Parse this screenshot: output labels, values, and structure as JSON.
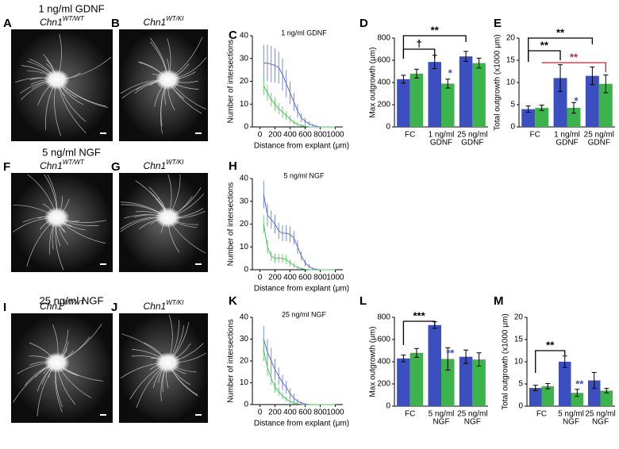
{
  "rows": [
    "1 ng/ml GDNF",
    "5 ng/ml NGF",
    "25 ng/ml NGF"
  ],
  "panels": [
    {
      "letter": "A",
      "genotype": "Chn1",
      "superscript": "WT/WT"
    },
    {
      "letter": "B",
      "genotype": "Chn1",
      "superscript": "WT/KI"
    },
    {
      "letter": "F",
      "genotype": "Chn1",
      "superscript": "WT/WT"
    },
    {
      "letter": "G",
      "genotype": "Chn1",
      "superscript": "WT/KI"
    },
    {
      "letter": "I",
      "genotype": "Chn1",
      "superscript": "WT/WT"
    },
    {
      "letter": "J",
      "genotype": "Chn1",
      "superscript": "WT/KI"
    }
  ],
  "chart_data": [
    {
      "type": "line",
      "letter": "C",
      "title": "1 ng/ml GDNF",
      "x_label": "Distance from explant (μm)",
      "y_label": "Number of intersections",
      "x": [
        50,
        100,
        150,
        200,
        250,
        300,
        350,
        400,
        450,
        500,
        550,
        600,
        650,
        700,
        750,
        800,
        850,
        900,
        950,
        1000
      ],
      "xlim": [
        -100,
        1100
      ],
      "xticks": [
        0,
        200,
        400,
        600,
        800,
        1000
      ],
      "ylim": [
        0,
        40
      ],
      "yticks": [
        0,
        10,
        20,
        30,
        40
      ],
      "series": [
        {
          "color": "#5a6fd0",
          "values": [
            28,
            28,
            27.5,
            27,
            26,
            23,
            19,
            15,
            11,
            7,
            4,
            2.5,
            1.5,
            0.8,
            0.3,
            0,
            0,
            0,
            0,
            0
          ],
          "errors": [
            8,
            8,
            8,
            7.5,
            7,
            7,
            6,
            5,
            4,
            3,
            2,
            1.5,
            1,
            0.5,
            0.3,
            0,
            0,
            0,
            0,
            0
          ]
        },
        {
          "color": "#4cc05a",
          "values": [
            18,
            15,
            12,
            10,
            8,
            6.5,
            5,
            3.5,
            2,
            1.2,
            0.6,
            0.3,
            0,
            0,
            0,
            0,
            0,
            0,
            0,
            0
          ],
          "errors": [
            4,
            3.5,
            3,
            3,
            2.5,
            2.5,
            2,
            1.5,
            1,
            0.8,
            0.5,
            0.3,
            0,
            0,
            0,
            0,
            0,
            0,
            0,
            0
          ]
        }
      ]
    },
    {
      "type": "bar",
      "letter": "D",
      "y_label": "Max outgrowth (μm)",
      "categories": [
        [
          "FC"
        ],
        [
          "1 ng/ml",
          "GDNF"
        ],
        [
          "25 ng/ml",
          "GDNF"
        ]
      ],
      "ylim": [
        0,
        800
      ],
      "yticks": [
        0,
        200,
        400,
        600,
        800
      ],
      "series": [
        {
          "color": "#3c4fc0",
          "values": [
            430,
            585,
            635
          ],
          "errors": [
            35,
            60,
            45
          ]
        },
        {
          "color": "#3cb44b",
          "values": [
            480,
            390,
            575
          ],
          "errors": [
            40,
            40,
            45
          ]
        }
      ],
      "annotations": [
        {
          "text": "**",
          "color": "#000000"
        },
        {
          "text": "†",
          "color": "#000000"
        },
        {
          "text": "*",
          "color": "#3c4fc0"
        }
      ]
    },
    {
      "type": "bar",
      "letter": "E",
      "y_label": "Total outgrowth (x1000 μm)",
      "categories": [
        [
          "FC"
        ],
        [
          "1 ng/ml",
          "GDNF"
        ],
        [
          "25 ng/ml",
          "GDNF"
        ]
      ],
      "ylim": [
        0,
        20
      ],
      "yticks": [
        0,
        5,
        10,
        15,
        20
      ],
      "series": [
        {
          "color": "#3c4fc0",
          "values": [
            4,
            11,
            11.5
          ],
          "errors": [
            0.7,
            3,
            2
          ]
        },
        {
          "color": "#3cb44b",
          "values": [
            4.3,
            4.3,
            9.7
          ],
          "errors": [
            0.6,
            1.2,
            2
          ]
        }
      ],
      "annotations": [
        {
          "text": "**",
          "color": "#000000"
        },
        {
          "text": "**",
          "color": "#000000"
        },
        {
          "text": "**",
          "color": "#d6202a"
        },
        {
          "text": "*",
          "color": "#3c4fc0"
        }
      ]
    },
    {
      "type": "line",
      "letter": "H",
      "title": "5 ng/ml NGF",
      "x_label": "Distance from explant (μm)",
      "y_label": "Number of intersections",
      "x": [
        50,
        100,
        150,
        200,
        250,
        300,
        350,
        400,
        450,
        500,
        550,
        600,
        650,
        700,
        750,
        800,
        850,
        900,
        950,
        1000
      ],
      "xlim": [
        -100,
        1100
      ],
      "xticks": [
        0,
        200,
        400,
        600,
        800,
        1000
      ],
      "ylim": [
        0,
        40
      ],
      "yticks": [
        0,
        10,
        20,
        30,
        40
      ],
      "series": [
        {
          "color": "#5a6fd0",
          "values": [
            33,
            24,
            22,
            20,
            17,
            16,
            16,
            15.5,
            14,
            10,
            6,
            3,
            1.5,
            0.5,
            0.2,
            0,
            0,
            0,
            0,
            0
          ],
          "errors": [
            6,
            5,
            4,
            4,
            3.5,
            3.5,
            3.5,
            3.5,
            3,
            3,
            2,
            1.5,
            1,
            0.5,
            0.2,
            0,
            0,
            0,
            0,
            0
          ]
        },
        {
          "color": "#4cc05a",
          "values": [
            20,
            10,
            6,
            5,
            5,
            5,
            4.5,
            3,
            2,
            1,
            0.5,
            0.2,
            0,
            0,
            0,
            0,
            0,
            0,
            0,
            0
          ],
          "errors": [
            4,
            3,
            2,
            2,
            2,
            2,
            2,
            1.5,
            1,
            0.6,
            0.3,
            0.2,
            0,
            0,
            0,
            0,
            0,
            0,
            0,
            0
          ]
        }
      ]
    },
    {
      "type": "line",
      "letter": "K",
      "title": "25 ng/ml NGF",
      "x_label": "Distance from explant (μm)",
      "y_label": "Number of intersections",
      "x": [
        50,
        100,
        150,
        200,
        250,
        300,
        350,
        400,
        450,
        500,
        550,
        600,
        650,
        700,
        750,
        800,
        850,
        900,
        950,
        1000
      ],
      "xlim": [
        -100,
        1100
      ],
      "xticks": [
        0,
        200,
        400,
        600,
        800,
        1000
      ],
      "ylim": [
        0,
        40
      ],
      "yticks": [
        0,
        10,
        20,
        30,
        40
      ],
      "series": [
        {
          "color": "#5a6fd0",
          "values": [
            30,
            24,
            20,
            16,
            13,
            10,
            8,
            5,
            3,
            1.5,
            0.8,
            0.3,
            0.1,
            0,
            0,
            0,
            0,
            0,
            0,
            0
          ],
          "errors": [
            6,
            6,
            6,
            5,
            4,
            3.5,
            3,
            2.5,
            2,
            1.2,
            0.6,
            0.3,
            0.1,
            0,
            0,
            0,
            0,
            0,
            0,
            0
          ]
        },
        {
          "color": "#4cc05a",
          "values": [
            25,
            17,
            12,
            8,
            6,
            4,
            2.5,
            1.5,
            0.8,
            0.3,
            0.1,
            0,
            0,
            0,
            0,
            0,
            0,
            0,
            0,
            0
          ],
          "errors": [
            5,
            4,
            3,
            2.5,
            2,
            1.5,
            1.2,
            0.8,
            0.5,
            0.3,
            0.1,
            0,
            0,
            0,
            0,
            0,
            0,
            0,
            0,
            0
          ]
        }
      ]
    },
    {
      "type": "bar",
      "letter": "L",
      "y_label": "Max outgrowth (μm)",
      "categories": [
        [
          "FC"
        ],
        [
          "5 ng/ml",
          "NGF"
        ],
        [
          "25 ng/ml",
          "NGF"
        ]
      ],
      "ylim": [
        0,
        800
      ],
      "yticks": [
        0,
        200,
        400,
        600,
        800
      ],
      "series": [
        {
          "color": "#3c4fc0",
          "values": [
            430,
            730,
            445
          ],
          "errors": [
            30,
            30,
            60
          ]
        },
        {
          "color": "#3cb44b",
          "values": [
            480,
            425,
            420
          ],
          "errors": [
            40,
            100,
            60
          ]
        }
      ],
      "annotations": [
        {
          "text": "***",
          "color": "#000000"
        },
        {
          "text": "**",
          "color": "#3c4fc0"
        }
      ]
    },
    {
      "type": "bar",
      "letter": "M",
      "y_label": "Total outgrowth (x1000 μm)",
      "categories": [
        [
          "FC"
        ],
        [
          "5 ng/ml",
          "NGF"
        ],
        [
          "25 ng/ml",
          "NGF"
        ]
      ],
      "ylim": [
        0,
        20
      ],
      "yticks": [
        0,
        5,
        10,
        15,
        20
      ],
      "series": [
        {
          "color": "#3c4fc0",
          "values": [
            4.1,
            10,
            5.8
          ],
          "errors": [
            0.6,
            1.3,
            1.8
          ]
        },
        {
          "color": "#3cb44b",
          "values": [
            4.5,
            3,
            3.5
          ],
          "errors": [
            0.6,
            0.8,
            0.5
          ]
        }
      ],
      "annotations": [
        {
          "text": "**",
          "color": "#000000"
        },
        {
          "text": "**",
          "color": "#3c4fc0"
        }
      ]
    }
  ]
}
